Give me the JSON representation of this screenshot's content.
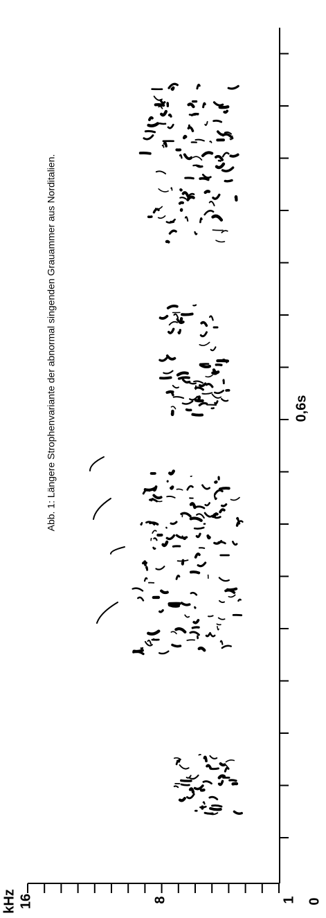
{
  "figure": {
    "caption": "Abb. 1: Längere Strophenvariante der abnormal singenden Grauammer aus Norditalien.",
    "frequency_axis": {
      "unit": "kHz",
      "labels": [
        "16",
        "8",
        "1"
      ]
    },
    "time_axis": {
      "origin": "0",
      "label": "0,6s"
    }
  }
}
